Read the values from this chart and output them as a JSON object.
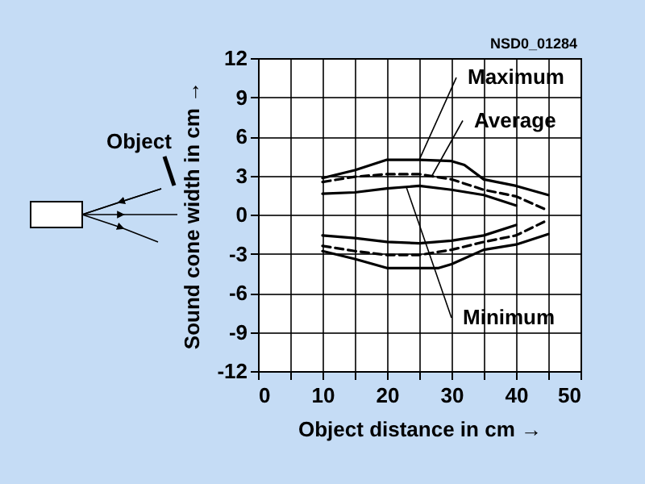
{
  "chart_data": {
    "type": "line",
    "xlabel": "Object distance in cm →",
    "ylabel": "Sound cone width in cm →",
    "xlim": [
      0,
      50
    ],
    "xticks": [
      0,
      {
        "value": 5,
        "label": null
      },
      10,
      {
        "value": 15,
        "label": null
      },
      20,
      {
        "value": 25,
        "label": null
      },
      30,
      {
        "value": 35,
        "label": null
      },
      40,
      {
        "value": 45,
        "label": null
      },
      50
    ],
    "ylim": [
      -12,
      12
    ],
    "yticks": [
      -12,
      -9,
      -6,
      -3,
      0,
      3,
      6,
      9,
      12
    ],
    "grid": true,
    "series": [
      {
        "color": "#000000",
        "line_style": "solid",
        "x": [
          10,
          15,
          20,
          25,
          30,
          32,
          35,
          40,
          45
        ],
        "values": [
          2.8,
          3.4,
          4.2,
          4.2,
          4.1,
          3.8,
          2.7,
          2.2,
          1.5
        ]
      },
      {
        "color": "#000000",
        "line_style": "dashed",
        "x": [
          10,
          15,
          20,
          25,
          30,
          35,
          40,
          45
        ],
        "values": [
          2.5,
          2.9,
          3.1,
          3.1,
          2.7,
          1.9,
          1.4,
          0.3
        ]
      },
      {
        "color": "#000000",
        "line_style": "solid",
        "x": [
          10,
          15,
          20,
          25,
          30,
          35,
          40
        ],
        "values": [
          1.6,
          1.7,
          2.0,
          2.2,
          1.9,
          1.5,
          0.7
        ]
      },
      {
        "color": "#000000",
        "line_style": "solid",
        "x": [
          10,
          15,
          20,
          25,
          30,
          35,
          40
        ],
        "values": [
          -1.6,
          -1.8,
          -2.1,
          -2.2,
          -2.0,
          -1.6,
          -0.8
        ]
      },
      {
        "color": "#000000",
        "line_style": "dashed",
        "x": [
          10,
          15,
          20,
          25,
          30,
          35,
          40,
          45
        ],
        "values": [
          -2.4,
          -2.8,
          -3.1,
          -3.1,
          -2.7,
          -2.1,
          -1.6,
          -0.4
        ]
      },
      {
        "color": "#000000",
        "line_style": "solid",
        "x": [
          10,
          15,
          20,
          25,
          28,
          30,
          35,
          40,
          45
        ],
        "values": [
          -2.8,
          -3.4,
          -4.1,
          -4.1,
          -4.1,
          -3.8,
          -2.7,
          -2.3,
          -1.5
        ]
      }
    ],
    "annotations": [
      "NSD0_01284",
      "Object",
      {
        "text": "Maximum",
        "x": 25,
        "y": 4.2
      },
      {
        "text": "Average",
        "x": 27,
        "y": 3.0
      },
      {
        "text": "Minimum",
        "x": 23,
        "y": 2.1
      }
    ]
  }
}
